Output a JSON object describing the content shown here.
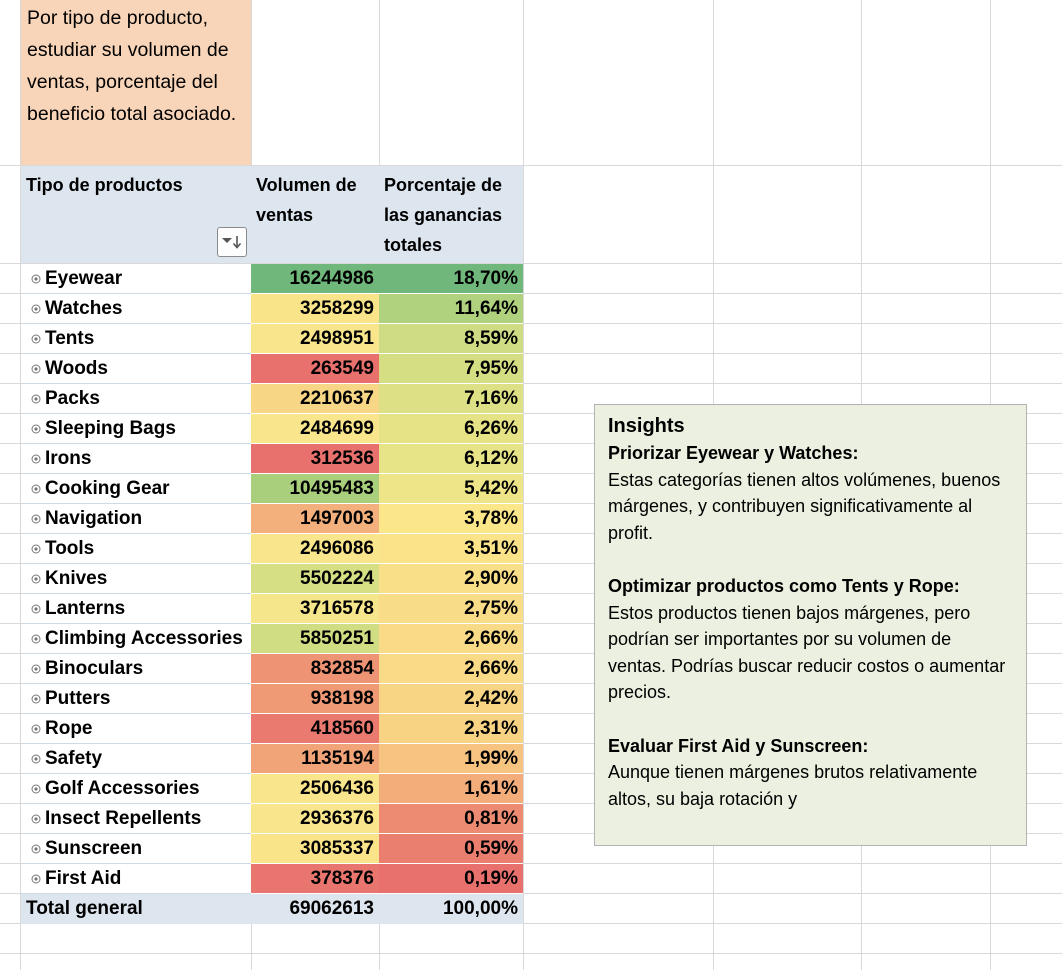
{
  "note_text": "Por tipo de producto, estudiar su volumen de ventas, porcentaje del beneficio total asociado.",
  "headers": {
    "product": "Tipo de productos",
    "volume": "Volumen de ventas",
    "percent": "Porcentaje de las ganancias totales"
  },
  "rows": [
    {
      "name": "Eyewear",
      "volume": "16244986",
      "percent": "18,70%",
      "vol_color": "#6fb77a",
      "pct_color": "#6fb77a"
    },
    {
      "name": "Watches",
      "volume": "3258299",
      "percent": "11,64%",
      "vol_color": "#f9e48a",
      "pct_color": "#b0d27f"
    },
    {
      "name": "Tents",
      "volume": "2498951",
      "percent": "8,59%",
      "vol_color": "#f9e58c",
      "pct_color": "#cfdc83"
    },
    {
      "name": "Woods",
      "volume": "263549",
      "percent": "7,95%",
      "vol_color": "#e8706d",
      "pct_color": "#d6de84"
    },
    {
      "name": "Packs",
      "volume": "2210637",
      "percent": "7,16%",
      "vol_color": "#f7d686",
      "pct_color": "#dde085"
    },
    {
      "name": "Sleeping Bags",
      "volume": "2484699",
      "percent": "6,26%",
      "vol_color": "#f9e58c",
      "pct_color": "#e5e386"
    },
    {
      "name": "Irons",
      "volume": "312536",
      "percent": "6,12%",
      "vol_color": "#e8716e",
      "pct_color": "#e7e387"
    },
    {
      "name": "Cooking Gear",
      "volume": "10495483",
      "percent": "5,42%",
      "vol_color": "#a9cf7d",
      "pct_color": "#eee588"
    },
    {
      "name": "Navigation",
      "volume": "1497003",
      "percent": "3,78%",
      "vol_color": "#f3b07c",
      "pct_color": "#fbe68a"
    },
    {
      "name": "Tools",
      "volume": "2496086",
      "percent": "3,51%",
      "vol_color": "#f9e58c",
      "pct_color": "#fbe38a"
    },
    {
      "name": "Knives",
      "volume": "5502224",
      "percent": "2,90%",
      "vol_color": "#d6df84",
      "pct_color": "#fadf89"
    },
    {
      "name": "Lanterns",
      "volume": "3716578",
      "percent": "2,75%",
      "vol_color": "#f5e68b",
      "pct_color": "#f9dc88"
    },
    {
      "name": "Climbing Accessories",
      "volume": "5850251",
      "percent": "2,66%",
      "vol_color": "#d1dd83",
      "pct_color": "#f9da87"
    },
    {
      "name": "Binoculars",
      "volume": "832854",
      "percent": "2,66%",
      "vol_color": "#ee9474",
      "pct_color": "#f9da87"
    },
    {
      "name": "Putters",
      "volume": "938198",
      "percent": "2,42%",
      "vol_color": "#ef9a75",
      "pct_color": "#f8d585"
    },
    {
      "name": "Rope",
      "volume": "418560",
      "percent": "2,31%",
      "vol_color": "#ea7a6f",
      "pct_color": "#f8d384"
    },
    {
      "name": "Safety",
      "volume": "1135194",
      "percent": "1,99%",
      "vol_color": "#f1a478",
      "pct_color": "#f6c380"
    },
    {
      "name": "Golf Accessories",
      "volume": "2506436",
      "percent": "1,61%",
      "vol_color": "#f9e58c",
      "pct_color": "#f3ad7b"
    },
    {
      "name": "Insect Repellents",
      "volume": "2936376",
      "percent": "0,81%",
      "vol_color": "#f9e58c",
      "pct_color": "#ec8b72"
    },
    {
      "name": "Sunscreen",
      "volume": "3085337",
      "percent": "0,59%",
      "vol_color": "#f9e48a",
      "pct_color": "#ea7f70"
    },
    {
      "name": "First Aid",
      "volume": "378376",
      "percent": "0,19%",
      "vol_color": "#e9766e",
      "pct_color": "#e8706d"
    }
  ],
  "total": {
    "label": "Total general",
    "volume": "69062613",
    "percent": "100,00%"
  },
  "insights": {
    "title": "Insights",
    "s1_title": "Priorizar Eyewear y Watches:",
    "s1_body": "Estas categorías tienen altos volúmenes, buenos márgenes, y contribuyen significativamente al profit.",
    "s2_title": "Optimizar productos como Tents y Rope:",
    "s2_body": "Estos productos tienen bajos márgenes, pero podrían ser importantes por su volumen de ventas. Podrías buscar reducir costos o aumentar precios.",
    "s3_title": "Evaluar First Aid y Sunscreen:",
    "s3_body": "Aunque tienen márgenes brutos relativamente altos, su baja rotación y"
  },
  "icons": {
    "expand": "expand-circle-icon",
    "filter": "sort-filter-icon"
  }
}
